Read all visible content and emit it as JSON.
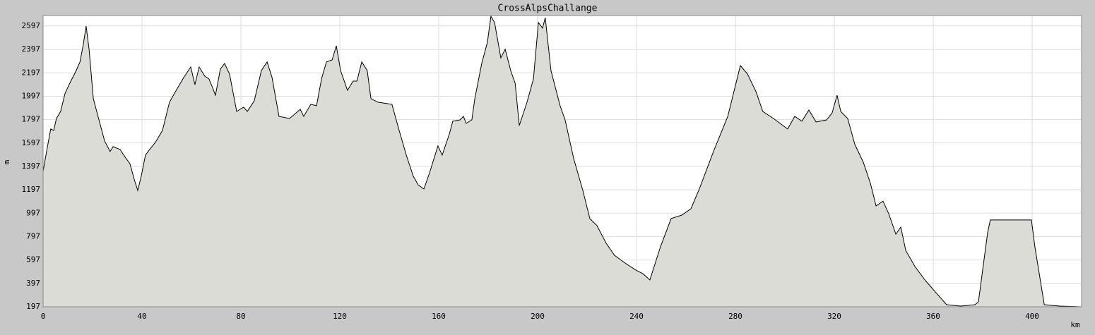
{
  "chart_data": {
    "type": "area",
    "title": "CrossAlpsChallange",
    "x_label": "km",
    "y_label": "m",
    "x": [
      0,
      1.4,
      3.1,
      4.3,
      5.4,
      7.1,
      8.9,
      11.1,
      13.4,
      14.9,
      16.3,
      17.4,
      18.6,
      20.3,
      22.6,
      24.9,
      27.1,
      28.3,
      31.1,
      33.4,
      35.1,
      36.9,
      38.3,
      39.7,
      41.4,
      43.1,
      45.4,
      48.3,
      51.1,
      54,
      56.9,
      59.7,
      61.4,
      63.1,
      65.4,
      67.1,
      68.3,
      69.7,
      71.7,
      73.4,
      75.4,
      78.3,
      81.1,
      82.6,
      85.4,
      88.3,
      90.6,
      92.6,
      95.4,
      99.7,
      104,
      105.4,
      108.3,
      110.6,
      112.6,
      114.6,
      116.9,
      118.6,
      120.3,
      123.1,
      125.4,
      126.9,
      128.9,
      131.1,
      132.6,
      135.4,
      141.1,
      144,
      146.9,
      149.7,
      151.7,
      154,
      156.3,
      159.7,
      161.4,
      164.3,
      165.7,
      168.6,
      170,
      171.1,
      173.4,
      174.6,
      177.4,
      179.7,
      181.1,
      182.6,
      185.1,
      186.9,
      189.1,
      190.9,
      192.6,
      195.7,
      198.3,
      200.3,
      202,
      203.1,
      205.4,
      209.1,
      211.1,
      214.6,
      218.3,
      221.1,
      224,
      227.7,
      231.1,
      235.4,
      239.7,
      242.6,
      245.4,
      249.7,
      254,
      258.3,
      262,
      265.4,
      271.1,
      276.9,
      282,
      284.9,
      288.3,
      291.1,
      295.4,
      301.1,
      304,
      306.9,
      309.7,
      312.6,
      316.9,
      319.1,
      321.1,
      322.6,
      325.4,
      328.3,
      331.7,
      334.6,
      336.9,
      339.7,
      342,
      344.9,
      346.9,
      348.9,
      352.6,
      356.9,
      361.1,
      365.4,
      371.1,
      376.9,
      378.3,
      382,
      383.1,
      391.1,
      399.7,
      401.1,
      404.9,
      411.1,
      420
    ],
    "values": [
      1355,
      1524,
      1717,
      1705,
      1807,
      1867,
      2024,
      2121,
      2217,
      2290,
      2446,
      2597,
      2398,
      1976,
      1795,
      1614,
      1524,
      1566,
      1542,
      1470,
      1421,
      1282,
      1192,
      1313,
      1494,
      1542,
      1602,
      1705,
      1946,
      2054,
      2157,
      2247,
      2096,
      2247,
      2169,
      2145,
      2084,
      2006,
      2229,
      2277,
      2187,
      1867,
      1903,
      1867,
      1958,
      2217,
      2290,
      2157,
      1825,
      1807,
      1885,
      1825,
      1928,
      1916,
      2145,
      2290,
      2307,
      2428,
      2217,
      2048,
      2126,
      2126,
      2290,
      2217,
      1976,
      1946,
      1928,
      1705,
      1494,
      1313,
      1240,
      1204,
      1343,
      1572,
      1494,
      1675,
      1783,
      1795,
      1825,
      1765,
      1795,
      1976,
      2277,
      2458,
      2681,
      2627,
      2325,
      2398,
      2217,
      2108,
      1747,
      1946,
      2145,
      2627,
      2579,
      2669,
      2217,
      1916,
      1795,
      1463,
      1192,
      951,
      891,
      740,
      637,
      571,
      511,
      480,
      426,
      710,
      951,
      981,
      1035,
      1204,
      1524,
      1825,
      2259,
      2187,
      2036,
      1867,
      1807,
      1717,
      1825,
      1783,
      1879,
      1777,
      1795,
      1855,
      2006,
      1867,
      1807,
      1584,
      1433,
      1252,
      1059,
      1101,
      993,
      818,
      878,
      679,
      541,
      420,
      318,
      215,
      203,
      215,
      239,
      830,
      939,
      939,
      939,
      710,
      215,
      203,
      197
    ],
    "xlim": [
      0,
      420
    ],
    "ylim": [
      197,
      2687
    ],
    "xticks": [
      0,
      40,
      80,
      120,
      160,
      200,
      240,
      280,
      320,
      360,
      400
    ],
    "yticks": [
      197,
      397,
      597,
      797,
      997,
      1197,
      1397,
      1597,
      1797,
      1997,
      2197,
      2397,
      2597
    ],
    "grid": true,
    "color": "#dcdcd6",
    "line_color": "#000000"
  }
}
